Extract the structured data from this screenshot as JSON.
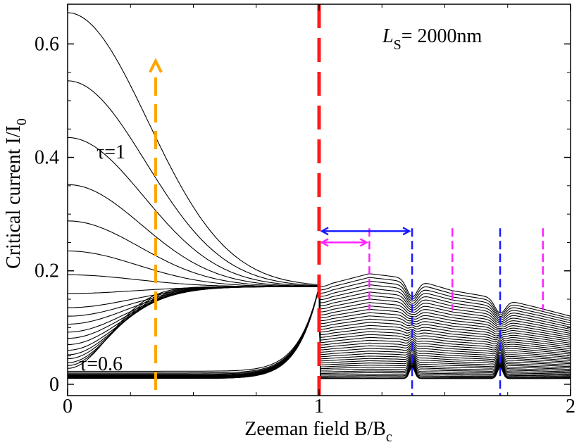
{
  "chart_data": {
    "type": "line",
    "xlabel": "Zeeman field B/B",
    "xlabel_sub": "c",
    "ylabel": "Critical current I/I",
    "ylabel_sub": "0",
    "xlim": [
      0,
      2
    ],
    "ylim": [
      -0.02,
      0.67
    ],
    "xticks": [
      0,
      1,
      2
    ],
    "xtick_labels": [
      "0",
      "1",
      "2"
    ],
    "yticks": [
      0,
      0.2,
      0.4,
      0.6
    ],
    "ytick_labels": [
      "0",
      "0.2",
      "0.4",
      "0.6"
    ],
    "annotation_LS": {
      "prefix": "L",
      "sub": "S",
      "suffix": "= 2000nm"
    },
    "label_tau_high": "τ=1",
    "label_tau_low": "τ=0.6",
    "curve_count": 40,
    "top_curve_values_at_zero": [
      0.655,
      0.535,
      0.435,
      0.352,
      0.288,
      0.235,
      0.193,
      0.16,
      0.135,
      0.12,
      0.106,
      0.092,
      0.081,
      0.07,
      0.06,
      0.052,
      0.045,
      0.038,
      0.033,
      0.028,
      0.023,
      0.02
    ],
    "value_at_Bc": 0.172,
    "low_floor": 0.01,
    "resonance_bumps": {
      "B": [
        1.0,
        1.2,
        1.37,
        1.53,
        1.73,
        1.87,
        2.0
      ],
      "upper_envelope": [
        0.172,
        0.195,
        0.186,
        0.165,
        0.15,
        0.135,
        0.12
      ]
    },
    "markers": {
      "red_dashed_B": 1.0,
      "orange_arrow": {
        "B": 0.35,
        "from": -0.01,
        "to": 0.57
      },
      "blue_dashed_B": [
        1.37,
        1.72
      ],
      "magenta_dashed_B": [
        1.2,
        1.53,
        1.89
      ],
      "blue_arrow": {
        "from": 1.0,
        "to": 1.37,
        "y": 0.27
      },
      "magenta_arrow": {
        "from": 1.0,
        "to": 1.2,
        "y": 0.25
      }
    },
    "colors": {
      "curves": "#000000",
      "red": "#ff1a1a",
      "orange": "#ffa500",
      "blue": "#1a1aff",
      "magenta": "#ff22ff"
    }
  }
}
